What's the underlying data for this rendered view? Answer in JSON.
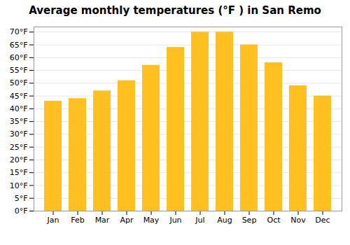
{
  "chart_data": {
    "type": "bar",
    "title": "Average monthly temperatures (°F ) in San Remo",
    "categories": [
      "Jan",
      "Feb",
      "Mar",
      "Apr",
      "May",
      "Jun",
      "Jul",
      "Aug",
      "Sep",
      "Oct",
      "Nov",
      "Dec"
    ],
    "values": [
      43,
      44,
      47,
      51,
      57,
      64,
      70,
      70,
      65,
      58,
      49,
      45
    ],
    "color": "#FFC020",
    "ylim": [
      0,
      72
    ],
    "yticks": [
      {
        "value": 0,
        "label": "0°F"
      },
      {
        "value": 5,
        "label": "5°F"
      },
      {
        "value": 10,
        "label": "10°F"
      },
      {
        "value": 15,
        "label": "15°F"
      },
      {
        "value": 20,
        "label": "20°F"
      },
      {
        "value": 25,
        "label": "25°F"
      },
      {
        "value": 30,
        "label": "30°F"
      },
      {
        "value": 35,
        "label": "35°F"
      },
      {
        "value": 40,
        "label": "40°F"
      },
      {
        "value": 45,
        "label": "45°F"
      },
      {
        "value": 50,
        "label": "50°F"
      },
      {
        "value": 55,
        "label": "55°F"
      },
      {
        "value": 60,
        "label": "60°F"
      },
      {
        "value": 65,
        "label": "65°F"
      },
      {
        "value": 70,
        "label": "70°F"
      }
    ],
    "grid": true
  }
}
